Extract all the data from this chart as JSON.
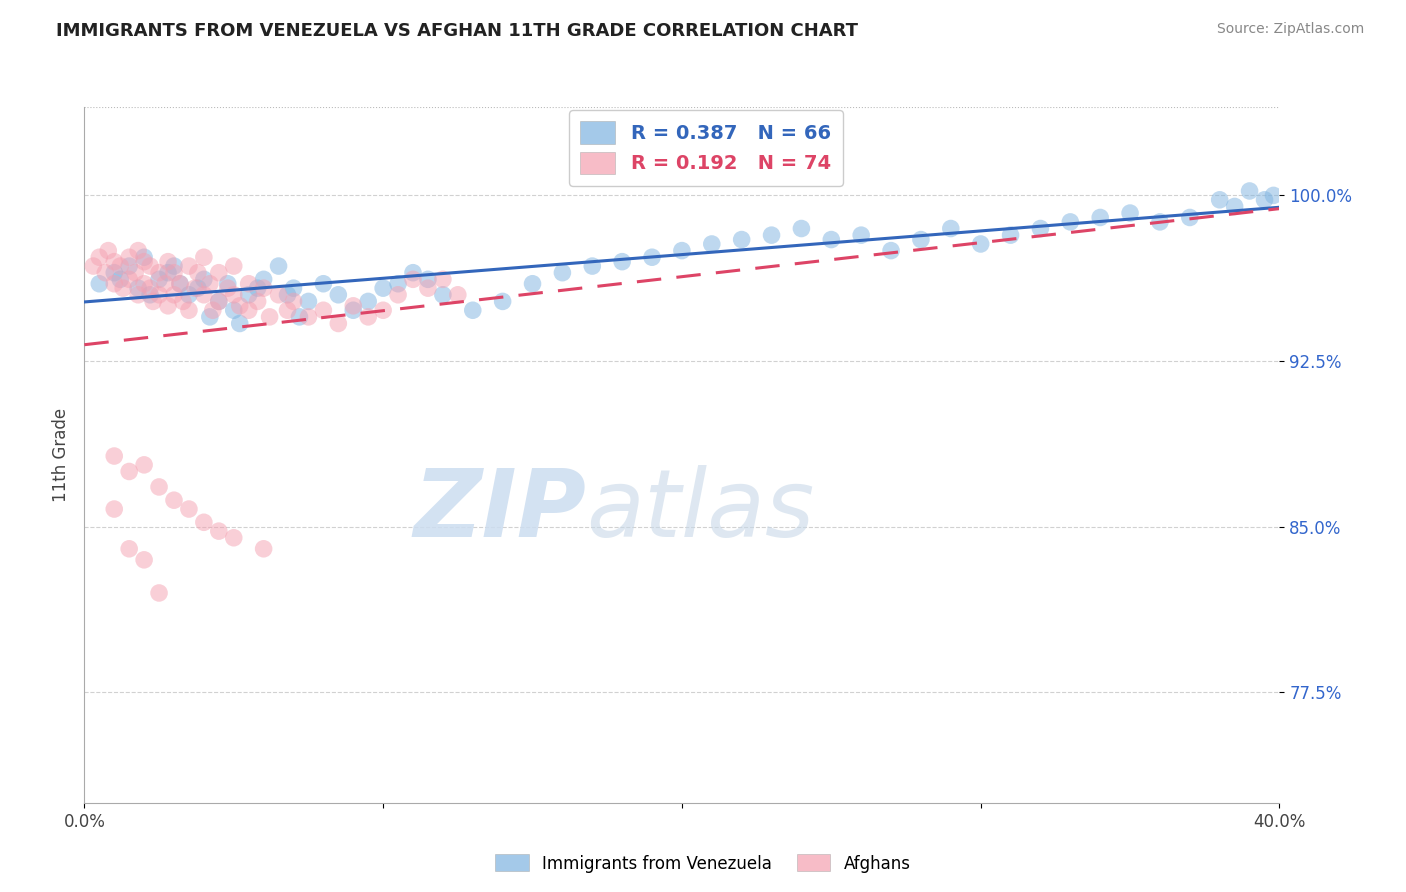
{
  "title": "IMMIGRANTS FROM VENEZUELA VS AFGHAN 11TH GRADE CORRELATION CHART",
  "source_text": "Source: ZipAtlas.com",
  "ylabel": "11th Grade",
  "xlim": [
    0.0,
    0.4
  ],
  "ylim": [
    0.725,
    1.04
  ],
  "yticks": [
    0.775,
    0.85,
    0.925,
    1.0
  ],
  "ytick_labels": [
    "77.5%",
    "85.0%",
    "92.5%",
    "100.0%"
  ],
  "xticks": [
    0.0,
    0.1,
    0.2,
    0.3,
    0.4
  ],
  "xtick_labels": [
    "0.0%",
    "",
    "",
    "",
    "40.0%"
  ],
  "legend_R_blue": "R = 0.387",
  "legend_N_blue": "N = 66",
  "legend_R_pink": "R = 0.192",
  "legend_N_pink": "N = 74",
  "legend_label_blue": "Immigrants from Venezuela",
  "legend_label_pink": "Afghans",
  "blue_color": "#7EB3E0",
  "pink_color": "#F4A0B0",
  "trend_blue_color": "#3366BB",
  "trend_pink_color": "#DD4466",
  "watermark_zip": "ZIP",
  "watermark_atlas": "atlas",
  "blue_scatter_x": [
    0.005,
    0.01,
    0.012,
    0.015,
    0.018,
    0.02,
    0.022,
    0.025,
    0.028,
    0.03,
    0.032,
    0.035,
    0.038,
    0.04,
    0.042,
    0.045,
    0.048,
    0.05,
    0.052,
    0.055,
    0.058,
    0.06,
    0.065,
    0.068,
    0.07,
    0.072,
    0.075,
    0.08,
    0.085,
    0.09,
    0.095,
    0.1,
    0.105,
    0.11,
    0.115,
    0.12,
    0.13,
    0.14,
    0.15,
    0.16,
    0.17,
    0.18,
    0.19,
    0.2,
    0.21,
    0.22,
    0.23,
    0.24,
    0.25,
    0.26,
    0.27,
    0.28,
    0.29,
    0.3,
    0.31,
    0.32,
    0.33,
    0.34,
    0.35,
    0.36,
    0.37,
    0.38,
    0.385,
    0.39,
    0.395,
    0.398
  ],
  "blue_scatter_y": [
    0.96,
    0.965,
    0.962,
    0.968,
    0.958,
    0.972,
    0.955,
    0.962,
    0.965,
    0.968,
    0.96,
    0.955,
    0.958,
    0.962,
    0.945,
    0.952,
    0.96,
    0.948,
    0.942,
    0.955,
    0.958,
    0.962,
    0.968,
    0.955,
    0.958,
    0.945,
    0.952,
    0.96,
    0.955,
    0.948,
    0.952,
    0.958,
    0.96,
    0.965,
    0.962,
    0.955,
    0.948,
    0.952,
    0.96,
    0.965,
    0.968,
    0.97,
    0.972,
    0.975,
    0.978,
    0.98,
    0.982,
    0.985,
    0.98,
    0.982,
    0.975,
    0.98,
    0.985,
    0.978,
    0.982,
    0.985,
    0.988,
    0.99,
    0.992,
    0.988,
    0.99,
    0.998,
    0.995,
    1.002,
    0.998,
    1.0
  ],
  "pink_scatter_x": [
    0.003,
    0.005,
    0.007,
    0.008,
    0.01,
    0.01,
    0.012,
    0.013,
    0.015,
    0.015,
    0.017,
    0.018,
    0.018,
    0.02,
    0.02,
    0.022,
    0.022,
    0.023,
    0.025,
    0.025,
    0.027,
    0.028,
    0.028,
    0.03,
    0.03,
    0.032,
    0.033,
    0.035,
    0.035,
    0.037,
    0.038,
    0.04,
    0.04,
    0.042,
    0.043,
    0.045,
    0.045,
    0.048,
    0.05,
    0.05,
    0.052,
    0.055,
    0.055,
    0.058,
    0.06,
    0.062,
    0.065,
    0.068,
    0.07,
    0.075,
    0.08,
    0.085,
    0.09,
    0.095,
    0.1,
    0.105,
    0.11,
    0.115,
    0.12,
    0.125,
    0.01,
    0.015,
    0.02,
    0.025,
    0.03,
    0.035,
    0.04,
    0.045,
    0.05,
    0.06,
    0.01,
    0.015,
    0.02,
    0.025
  ],
  "pink_scatter_y": [
    0.968,
    0.972,
    0.965,
    0.975,
    0.97,
    0.96,
    0.968,
    0.958,
    0.972,
    0.962,
    0.965,
    0.975,
    0.955,
    0.97,
    0.96,
    0.968,
    0.958,
    0.952,
    0.965,
    0.955,
    0.96,
    0.97,
    0.95,
    0.965,
    0.955,
    0.96,
    0.952,
    0.968,
    0.948,
    0.958,
    0.965,
    0.972,
    0.955,
    0.96,
    0.948,
    0.965,
    0.952,
    0.958,
    0.968,
    0.955,
    0.95,
    0.96,
    0.948,
    0.952,
    0.958,
    0.945,
    0.955,
    0.948,
    0.952,
    0.945,
    0.948,
    0.942,
    0.95,
    0.945,
    0.948,
    0.955,
    0.962,
    0.958,
    0.962,
    0.955,
    0.882,
    0.875,
    0.878,
    0.868,
    0.862,
    0.858,
    0.852,
    0.848,
    0.845,
    0.84,
    0.858,
    0.84,
    0.835,
    0.82
  ]
}
